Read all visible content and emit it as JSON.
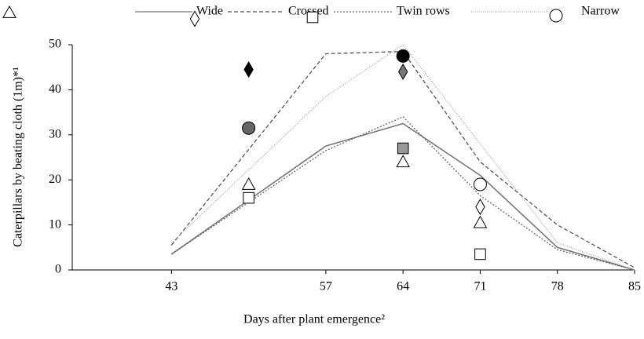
{
  "chart_data": {
    "type": "line",
    "y_label": "Caterpillars by beating cloth (1m)*¹",
    "x_label": "Days after plant emergence²",
    "x": [
      43,
      57,
      64,
      71,
      78,
      85
    ],
    "xlim": [
      34,
      85
    ],
    "xticks": [
      43,
      57,
      64,
      71,
      78,
      85
    ],
    "ylim": [
      0,
      50
    ],
    "yticks": [
      0,
      10,
      20,
      30,
      40,
      50
    ],
    "series": [
      {
        "name": "Wide",
        "color": "#777777",
        "dash": "solid",
        "marker": "triangle",
        "values": [
          3.5,
          27.5,
          32.5,
          21,
          5,
          0
        ],
        "points": {
          "x": [
            50,
            64,
            71
          ],
          "y": [
            19,
            24,
            10.5
          ],
          "fills": [
            "#ffffff",
            "#ffffff",
            "#ffffff"
          ]
        }
      },
      {
        "name": "Crossed",
        "color": "#555555",
        "dash": "dashed",
        "marker": "diamond",
        "values": [
          5.5,
          48,
          48.5,
          24,
          10,
          0.5
        ],
        "points": {
          "x": [
            50,
            64,
            71
          ],
          "y": [
            44.5,
            44,
            14
          ],
          "fills": [
            "#000000",
            "#777777",
            "#ffffff"
          ]
        }
      },
      {
        "name": "Twin rows",
        "color": "#666666",
        "dash": "dotted",
        "marker": "square",
        "values": [
          3.5,
          26.5,
          34,
          16.5,
          4.5,
          0
        ],
        "points": {
          "x": [
            50,
            64,
            71
          ],
          "y": [
            16,
            27,
            3.5
          ],
          "fills": [
            "#ffffff",
            "#999999",
            "#ffffff"
          ]
        }
      },
      {
        "name": "Narrow",
        "color": "#aaaaaa",
        "dash": "fine-dotted",
        "marker": "circle",
        "values": [
          6,
          38.5,
          50,
          28,
          6,
          0
        ],
        "points": {
          "x": [
            50,
            64,
            71
          ],
          "y": [
            31.5,
            47.5,
            19
          ],
          "fills": [
            "#666666",
            "#000000",
            "#ffffff"
          ]
        }
      }
    ]
  }
}
